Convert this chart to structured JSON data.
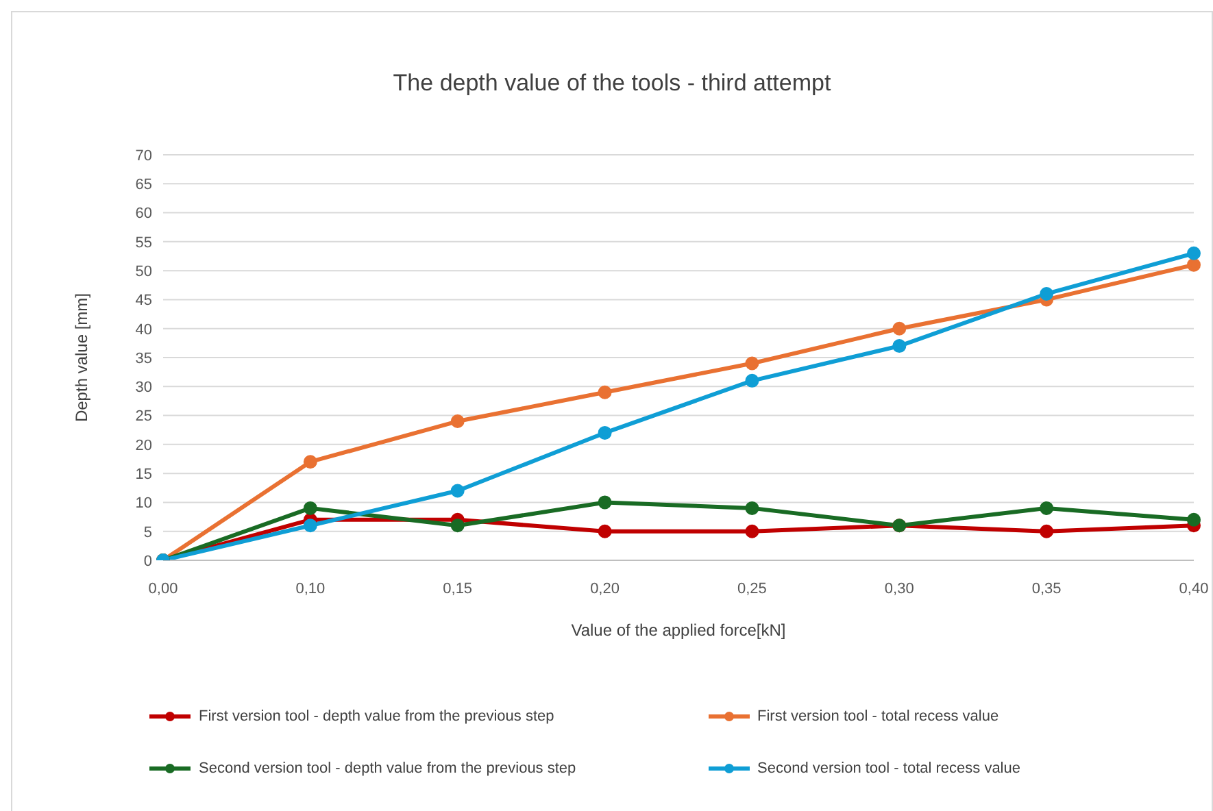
{
  "chart_data": {
    "type": "line",
    "title": "The depth value of the tools - third attempt",
    "xlabel": "Value of the applied force[kN]",
    "ylabel": "Depth value [mm]",
    "categories": [
      "0,00",
      "0,10",
      "0,15",
      "0,20",
      "0,25",
      "0,30",
      "0,35",
      "0,40"
    ],
    "series": [
      {
        "name": "First version tool - depth value from the previous step",
        "color": "#c00000",
        "values": [
          0,
          7,
          7,
          5,
          5,
          6,
          5,
          6
        ]
      },
      {
        "name": "First version tool - total recess value",
        "color": "#e97132",
        "values": [
          0,
          17,
          24,
          29,
          34,
          40,
          45,
          51
        ]
      },
      {
        "name": "Second version tool - depth value from the previous step",
        "color": "#196b24",
        "values": [
          0,
          9,
          6,
          10,
          9,
          6,
          9,
          7
        ]
      },
      {
        "name": "Second version tool - total recess value",
        "color": "#0f9ed5",
        "values": [
          0,
          6,
          12,
          22,
          31,
          37,
          46,
          53
        ]
      }
    ],
    "ylim": [
      0,
      70
    ],
    "yticks": [
      0,
      5,
      10,
      15,
      20,
      25,
      30,
      35,
      40,
      45,
      50,
      55,
      60,
      65,
      70
    ],
    "grid": "y",
    "legend": "bottom",
    "marker": "circle",
    "line_style": "solid"
  }
}
